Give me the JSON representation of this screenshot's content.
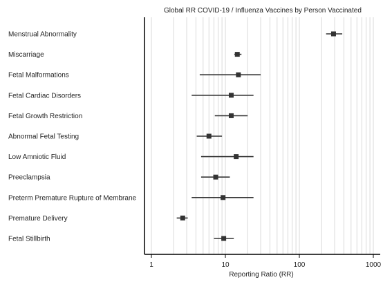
{
  "chart_data": {
    "type": "forest",
    "title": "Global RR COVID-19 / Influenza Vaccines by Person Vaccinated",
    "xlabel": "Reporting Ratio (RR)",
    "xscale": "log",
    "xlim": [
      0.75,
      1100
    ],
    "xticks": [
      1,
      10,
      100,
      1000
    ],
    "xtick_labels": [
      "1",
      "10",
      "100",
      "1000"
    ],
    "grid": "vertical minor log gridlines",
    "marker": "square",
    "color": "#333333",
    "rows": [
      {
        "label": "Menstrual Abnormality",
        "rr": 290,
        "lo": 230,
        "hi": 380
      },
      {
        "label": "Miscarriage",
        "rr": 14.5,
        "lo": 13.2,
        "hi": 16.5
      },
      {
        "label": "Fetal Malformations",
        "rr": 15,
        "lo": 4.5,
        "hi": 30
      },
      {
        "label": "Fetal Cardiac Disorders",
        "rr": 12,
        "lo": 3.5,
        "hi": 24
      },
      {
        "label": "Fetal Growth Restriction",
        "rr": 12,
        "lo": 7.2,
        "hi": 20
      },
      {
        "label": "Abnormal Fetal Testing",
        "rr": 6,
        "lo": 4.1,
        "hi": 9
      },
      {
        "label": "Low Amniotic Fluid",
        "rr": 14,
        "lo": 4.7,
        "hi": 24
      },
      {
        "label": "Preeclampsia",
        "rr": 7.4,
        "lo": 4.7,
        "hi": 11.5
      },
      {
        "label": "Preterm Premature Rupture of Membrane",
        "rr": 9.3,
        "lo": 3.5,
        "hi": 24
      },
      {
        "label": "Premature Delivery",
        "rr": 2.65,
        "lo": 2.2,
        "hi": 3.1
      },
      {
        "label": "Fetal Stillbirth",
        "rr": 9.5,
        "lo": 7.0,
        "hi": 13
      }
    ]
  }
}
